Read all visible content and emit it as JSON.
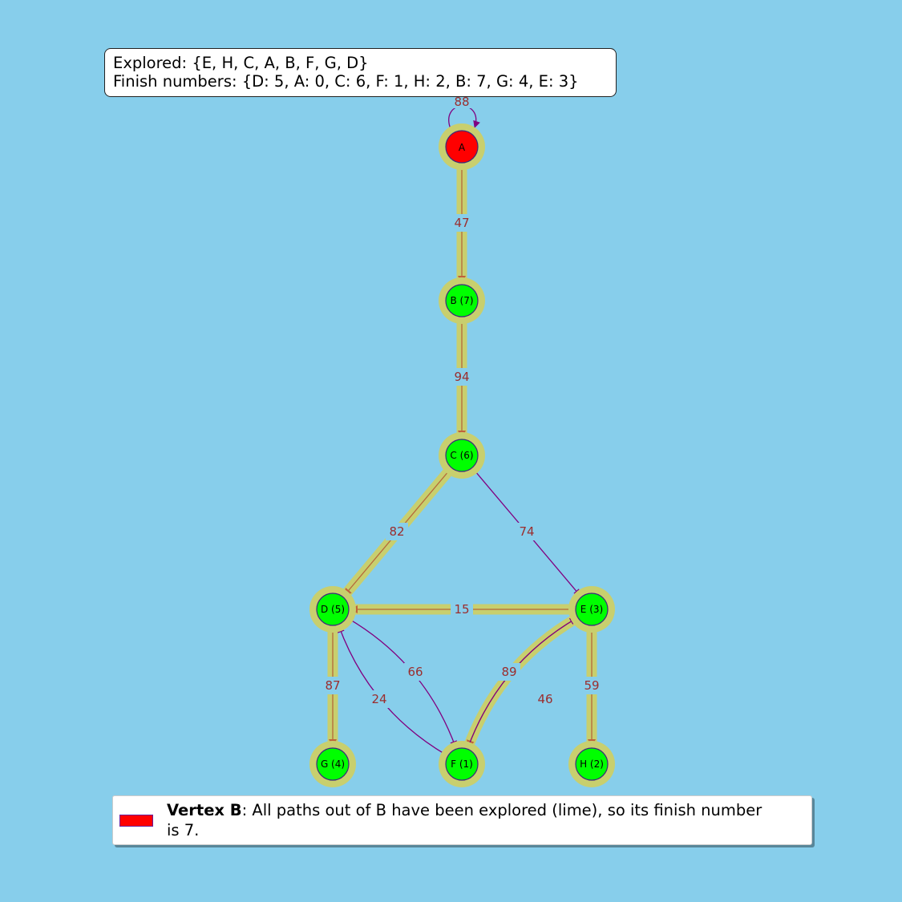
{
  "info": {
    "explored": "Explored: {E, H, C, A, B, F, G, D}",
    "finish": "Finish numbers: {D: 5, A: 0, C: 6, F: 1, H: 2, B: 7, G: 4, E: 3}"
  },
  "legend": {
    "bold": "Vertex B",
    "text": ": All paths out of B have been explored (lime), so its finish number",
    "text2": " is 7.",
    "swatch_color": "#ff0000"
  },
  "colors": {
    "start_node": "#ff0000",
    "finished_node": "#00ff00",
    "edge": "#800080",
    "halo": "#c8cf6e",
    "edge_label": "#9b2d2d"
  },
  "nodes": [
    {
      "id": "A",
      "label": "A",
      "color": "#ff0000"
    },
    {
      "id": "B",
      "label": "B (7)",
      "color": "#00ff00"
    },
    {
      "id": "C",
      "label": "C (6)",
      "color": "#00ff00"
    },
    {
      "id": "D",
      "label": "D (5)",
      "color": "#00ff00"
    },
    {
      "id": "E",
      "label": "E (3)",
      "color": "#00ff00"
    },
    {
      "id": "F",
      "label": "F (1)",
      "color": "#00ff00"
    },
    {
      "id": "G",
      "label": "G (4)",
      "color": "#00ff00"
    },
    {
      "id": "H",
      "label": "H (2)",
      "color": "#00ff00"
    }
  ],
  "edges": [
    {
      "from": "A",
      "to": "A",
      "weight": "88",
      "highlight": false
    },
    {
      "from": "A",
      "to": "B",
      "weight": "47",
      "highlight": true
    },
    {
      "from": "B",
      "to": "C",
      "weight": "94",
      "highlight": true
    },
    {
      "from": "C",
      "to": "D",
      "weight": "82",
      "highlight": true
    },
    {
      "from": "C",
      "to": "E",
      "weight": "74",
      "highlight": false
    },
    {
      "from": "E",
      "to": "D",
      "weight": "15",
      "highlight": true
    },
    {
      "from": "D",
      "to": "G",
      "weight": "87",
      "highlight": true
    },
    {
      "from": "D",
      "to": "F",
      "weight": "66",
      "highlight": false
    },
    {
      "from": "F",
      "to": "D",
      "weight": "24",
      "highlight": false
    },
    {
      "from": "E",
      "to": "F",
      "weight": "89",
      "highlight": true
    },
    {
      "from": "F",
      "to": "E",
      "weight": "46",
      "highlight": false
    },
    {
      "from": "E",
      "to": "H",
      "weight": "59",
      "highlight": true
    }
  ]
}
